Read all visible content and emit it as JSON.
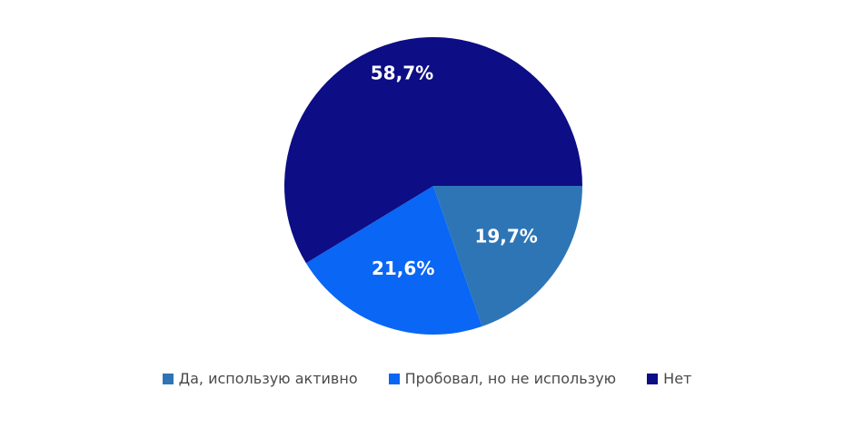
{
  "chart_data": {
    "type": "pie",
    "start": "right-horizontal",
    "direction": "clockwise",
    "slices": [
      {
        "label": "Да, использую активно",
        "value": 19.7,
        "value_label": "19,7%",
        "color": "#2E75B6"
      },
      {
        "label": "Пробовал, но не использую",
        "value": 21.6,
        "value_label": "21,6%",
        "color": "#0A66F5"
      },
      {
        "label": "Нет",
        "value": 58.7,
        "value_label": "58,7%",
        "color": "#0D0D85"
      }
    ],
    "legend_position": "bottom",
    "title": "",
    "data_labels": "inside"
  }
}
